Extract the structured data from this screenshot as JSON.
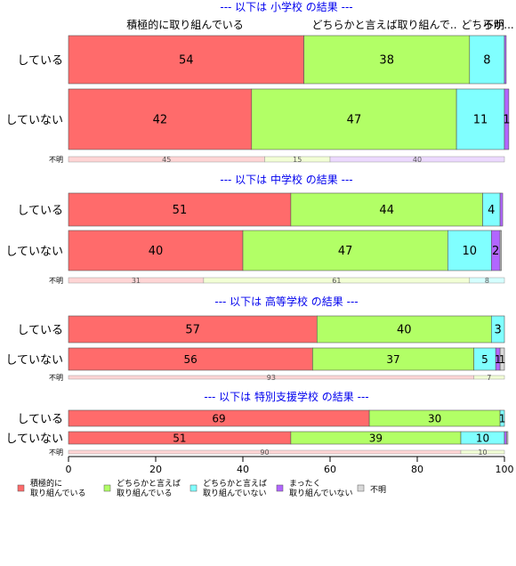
{
  "chart_data": {
    "type": "bar",
    "orientation": "horizontal",
    "stacked": true,
    "xlim": [
      0,
      100
    ],
    "x_ticks": [
      "0",
      "20",
      "40",
      "60",
      "80",
      "100"
    ],
    "grid": false,
    "legend_position": "bottom-left",
    "top_header_labels": [
      "積極的に取り組んでいる",
      "どちらかと言えば取り組んで..",
      "どちらか...",
      "不明"
    ],
    "series": [
      {
        "name": "積極的に\n取り組んでいる",
        "color": "#ff6b6b"
      },
      {
        "name": "どちらかと言えば\n取り組んでいる",
        "color": "#b2ff66"
      },
      {
        "name": "どちらかと言えば\n取り組んでいない",
        "color": "#80ffff"
      },
      {
        "name": "まったく\n取り組んでいない",
        "color": "#b266ff"
      },
      {
        "name": "不明",
        "color": "#d9d9d9"
      }
    ],
    "panels": [
      {
        "title": "--- 以下は 小学校 の結果 ---",
        "rows": [
          {
            "category": "している",
            "values": [
              54,
              38,
              8,
              0.4,
              0
            ],
            "labels": [
              "54",
              "38",
              "8",
              "",
              ""
            ]
          },
          {
            "category": "していない",
            "values": [
              42,
              47,
              11,
              1,
              0
            ],
            "labels": [
              "42",
              "47",
              "11",
              "1",
              ""
            ]
          }
        ],
        "unknown_row": {
          "category": "不明",
          "values": [
            45,
            15,
            40
          ],
          "labels": [
            "45",
            "15",
            "40"
          ],
          "colors": [
            "#ffd5d5",
            "#f2ffd5",
            "#ecd9ff"
          ]
        }
      },
      {
        "title": "--- 以下は 中学校 の結果 ---",
        "rows": [
          {
            "category": "している",
            "values": [
              51,
              44,
              4,
              0.6,
              0
            ],
            "labels": [
              "51",
              "44",
              "4",
              "",
              ""
            ]
          },
          {
            "category": "していない",
            "values": [
              40,
              47,
              10,
              2,
              0.3
            ],
            "labels": [
              "40",
              "47",
              "10",
              "2",
              ""
            ]
          }
        ],
        "unknown_row": {
          "category": "不明",
          "values": [
            31,
            61,
            8
          ],
          "labels": [
            "31",
            "61",
            "8"
          ],
          "colors": [
            "#ffd5d5",
            "#f2ffd5",
            "#d5ffff"
          ]
        }
      },
      {
        "title": "--- 以下は 高等学校 の結果 ---",
        "rows": [
          {
            "category": "している",
            "values": [
              57,
              40,
              3,
              0,
              0
            ],
            "labels": [
              "57",
              "40",
              "3",
              "",
              ""
            ]
          },
          {
            "category": "していない",
            "values": [
              56,
              37,
              5,
              1,
              1
            ],
            "labels": [
              "56",
              "37",
              "5",
              "1",
              "1"
            ]
          }
        ],
        "unknown_row": {
          "category": "不明",
          "values": [
            93,
            7
          ],
          "labels": [
            "93",
            "7"
          ],
          "colors": [
            "#ffd5d5",
            "#f2ffd5"
          ]
        }
      },
      {
        "title": "--- 以下は 特別支援学校 の結果 ---",
        "rows": [
          {
            "category": "している",
            "values": [
              69,
              30,
              1,
              0,
              0
            ],
            "labels": [
              "69",
              "30",
              "1",
              "",
              ""
            ]
          },
          {
            "category": "していない",
            "values": [
              51,
              39,
              10,
              0.5,
              0.3
            ],
            "labels": [
              "51",
              "39",
              "10",
              "",
              ""
            ]
          }
        ],
        "unknown_row": {
          "category": "不明",
          "values": [
            90,
            10
          ],
          "labels": [
            "90",
            "10"
          ],
          "colors": [
            "#ffd5d5",
            "#f2ffd5"
          ]
        }
      }
    ]
  }
}
